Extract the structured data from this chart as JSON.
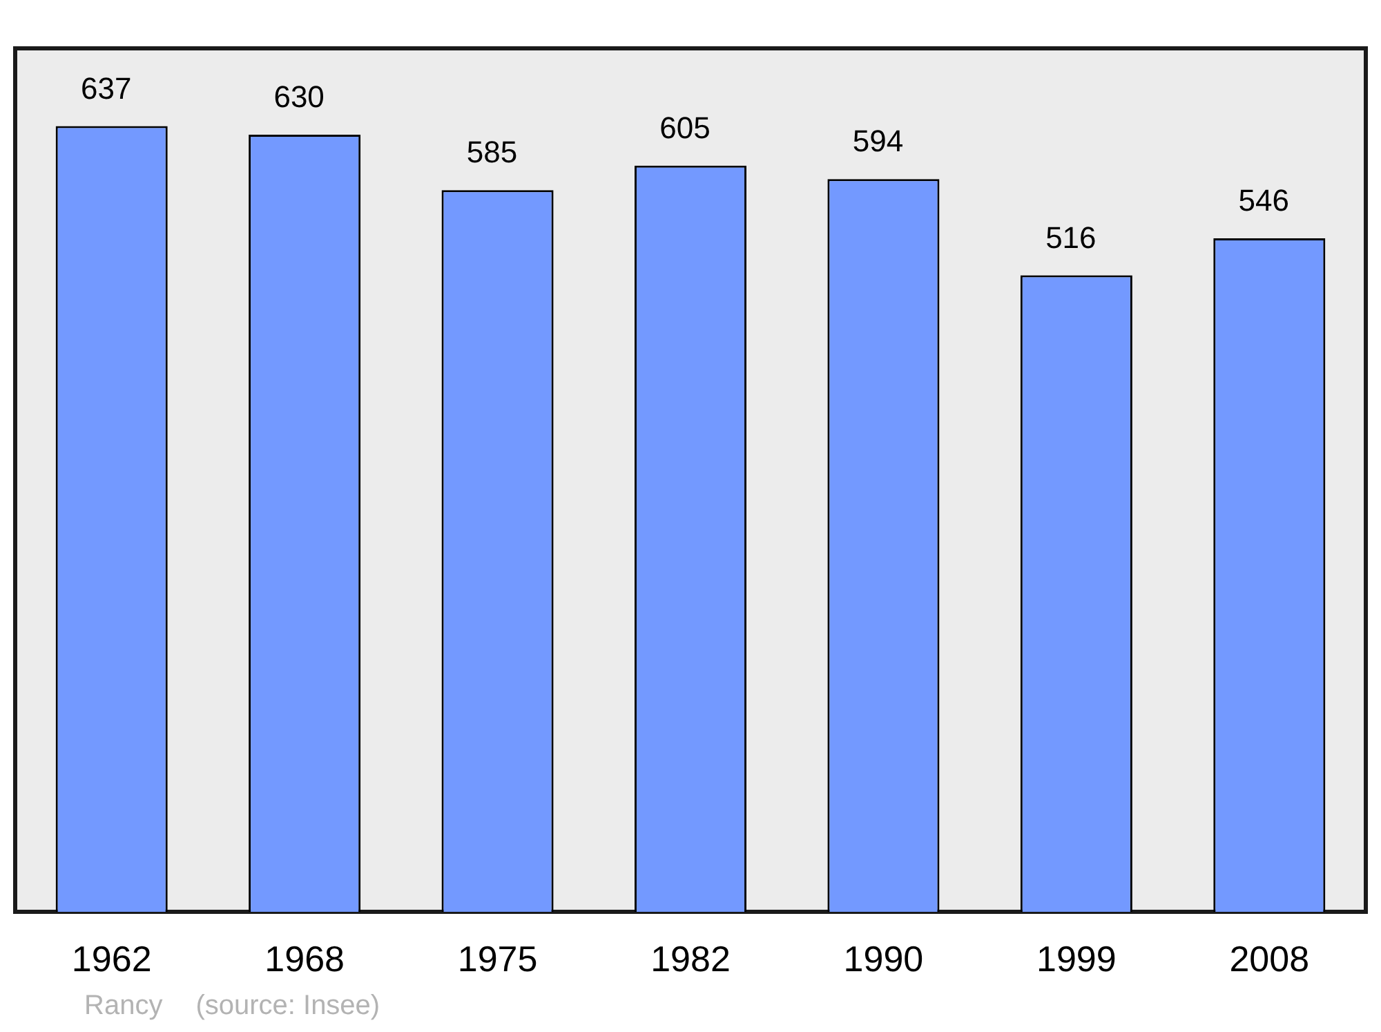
{
  "chart_data": {
    "type": "bar",
    "categories": [
      "1962",
      "1968",
      "1975",
      "1982",
      "1990",
      "1999",
      "2008"
    ],
    "values": [
      637,
      630,
      585,
      605,
      594,
      516,
      546
    ],
    "color": "#7399ff",
    "ylim": [
      0,
      700
    ],
    "data_labels": true,
    "legend": false,
    "annotations": [
      "Rancy",
      "(source: Insee)"
    ]
  }
}
